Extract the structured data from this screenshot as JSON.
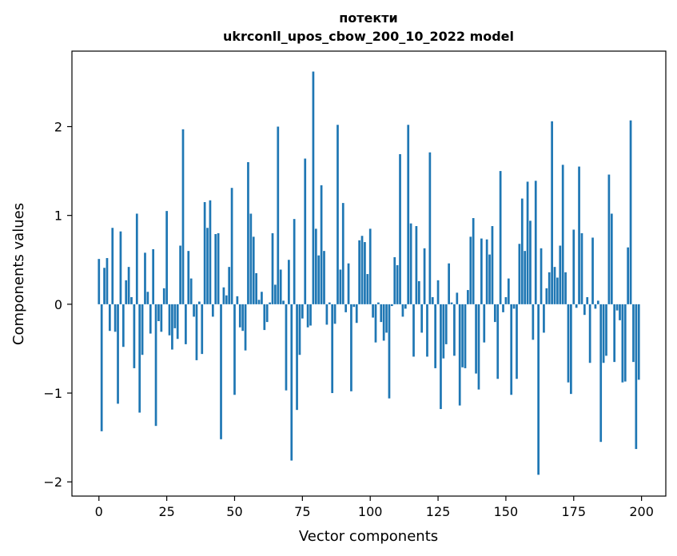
{
  "chart_data": {
    "type": "bar",
    "title": "потекти",
    "subtitle": "ukrconll_upos_cbow_200_10_2022 model",
    "xlabel": "Vector components",
    "ylabel": "Components values",
    "xlim": [
      -9.95,
      208.95
    ],
    "ylim": [
      -2.16,
      2.85
    ],
    "xticks": [
      0,
      25,
      50,
      75,
      100,
      125,
      150,
      175,
      200
    ],
    "xtick_labels": [
      "0",
      "25",
      "50",
      "75",
      "100",
      "125",
      "150",
      "175",
      "200"
    ],
    "yticks": [
      -2,
      -1,
      0,
      1,
      2
    ],
    "ytick_labels": [
      "−2",
      "−1",
      "0",
      "1",
      "2"
    ],
    "grid": false,
    "legend": "none",
    "bar_color": "#1f77b4",
    "x": [
      0,
      1,
      2,
      3,
      4,
      5,
      6,
      7,
      8,
      9,
      10,
      11,
      12,
      13,
      14,
      15,
      16,
      17,
      18,
      19,
      20,
      21,
      22,
      23,
      24,
      25,
      26,
      27,
      28,
      29,
      30,
      31,
      32,
      33,
      34,
      35,
      36,
      37,
      38,
      39,
      40,
      41,
      42,
      43,
      44,
      45,
      46,
      47,
      48,
      49,
      50,
      51,
      52,
      53,
      54,
      55,
      56,
      57,
      58,
      59,
      60,
      61,
      62,
      63,
      64,
      65,
      66,
      67,
      68,
      69,
      70,
      71,
      72,
      73,
      74,
      75,
      76,
      77,
      78,
      79,
      80,
      81,
      82,
      83,
      84,
      85,
      86,
      87,
      88,
      89,
      90,
      91,
      92,
      93,
      94,
      95,
      96,
      97,
      98,
      99,
      100,
      101,
      102,
      103,
      104,
      105,
      106,
      107,
      108,
      109,
      110,
      111,
      112,
      113,
      114,
      115,
      116,
      117,
      118,
      119,
      120,
      121,
      122,
      123,
      124,
      125,
      126,
      127,
      128,
      129,
      130,
      131,
      132,
      133,
      134,
      135,
      136,
      137,
      138,
      139,
      140,
      141,
      142,
      143,
      144,
      145,
      146,
      147,
      148,
      149,
      150,
      151,
      152,
      153,
      154,
      155,
      156,
      157,
      158,
      159,
      160,
      161,
      162,
      163,
      164,
      165,
      166,
      167,
      168,
      169,
      170,
      171,
      172,
      173,
      174,
      175,
      176,
      177,
      178,
      179,
      180,
      181,
      182,
      183,
      184,
      185,
      186,
      187,
      188,
      189,
      190,
      191,
      192,
      193,
      194,
      195,
      196,
      197,
      198,
      199
    ],
    "values": [
      0.51,
      -1.43,
      0.41,
      0.52,
      -0.3,
      0.86,
      -0.31,
      -1.12,
      0.82,
      -0.48,
      0.27,
      0.42,
      0.08,
      -0.72,
      1.02,
      -1.22,
      -0.57,
      0.58,
      0.14,
      -0.33,
      0.62,
      -1.37,
      -0.19,
      -0.31,
      0.18,
      1.05,
      -0.35,
      -0.51,
      -0.27,
      -0.39,
      0.66,
      1.97,
      -0.45,
      0.6,
      0.29,
      -0.14,
      -0.63,
      0.03,
      -0.56,
      1.15,
      0.86,
      1.17,
      -0.14,
      0.79,
      0.8,
      -1.52,
      0.19,
      0.1,
      0.42,
      1.31,
      -1.02,
      0.09,
      -0.26,
      -0.3,
      -0.52,
      1.6,
      1.02,
      0.76,
      0.35,
      0.05,
      0.14,
      -0.29,
      -0.2,
      0.02,
      0.8,
      0.22,
      2.0,
      0.39,
      0.04,
      -0.97,
      0.5,
      -1.76,
      0.96,
      -1.19,
      -0.57,
      -0.16,
      1.64,
      -0.26,
      -0.24,
      2.62,
      0.85,
      0.55,
      1.34,
      0.6,
      -0.23,
      0.02,
      -1.0,
      -0.22,
      2.02,
      0.39,
      1.14,
      -0.09,
      0.46,
      -0.98,
      -0.03,
      -0.21,
      0.72,
      0.77,
      0.7,
      0.34,
      0.85,
      -0.15,
      -0.43,
      0.02,
      -0.2,
      -0.41,
      -0.32,
      -1.06,
      -0.02,
      0.53,
      0.44,
      1.69,
      -0.14,
      -0.05,
      2.02,
      0.91,
      -0.59,
      0.88,
      0.26,
      -0.32,
      0.63,
      -0.59,
      1.71,
      0.08,
      -0.72,
      0.27,
      -1.18,
      -0.61,
      -0.45,
      0.46,
      0.02,
      -0.58,
      0.13,
      -1.14,
      -0.71,
      -0.72,
      0.16,
      0.76,
      0.97,
      -0.78,
      -0.96,
      0.74,
      -0.43,
      0.73,
      0.56,
      0.88,
      -0.2,
      -0.84,
      1.5,
      -0.09,
      0.08,
      0.29,
      -1.02,
      -0.05,
      -0.84,
      0.68,
      1.19,
      0.6,
      1.38,
      0.94,
      -0.4,
      1.39,
      -1.92,
      0.63,
      -0.32,
      0.18,
      0.36,
      2.06,
      0.42,
      0.3,
      0.66,
      1.57,
      0.36,
      -0.88,
      -1.01,
      0.84,
      -0.04,
      1.55,
      0.8,
      -0.12,
      0.08,
      -0.66,
      0.75,
      -0.05,
      0.04,
      -1.55,
      -0.66,
      -0.58,
      1.46,
      1.02,
      -0.65,
      -0.07,
      -0.18,
      -0.88,
      -0.87,
      0.64,
      2.07,
      -0.65,
      -1.63,
      -0.85
    ]
  }
}
